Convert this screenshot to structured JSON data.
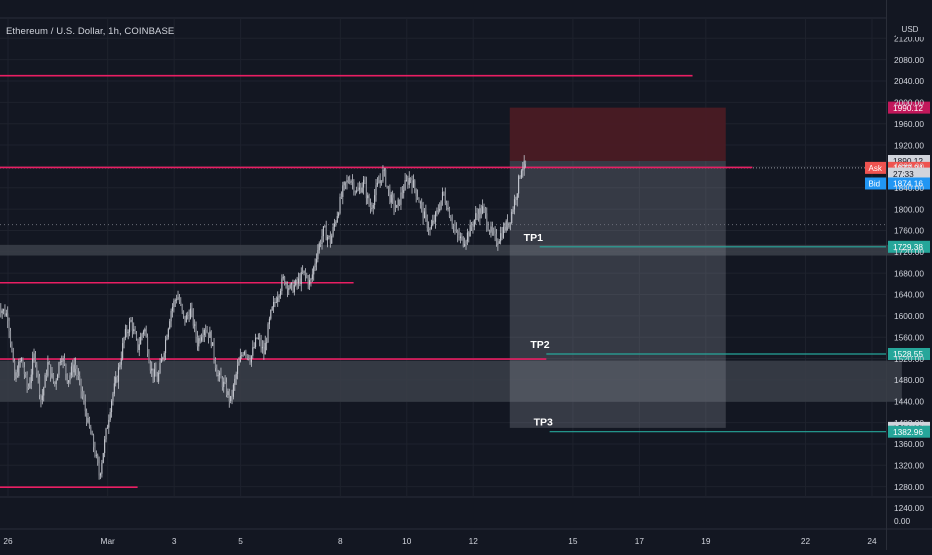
{
  "header": {
    "symbol_title": "Ethereum / U.S. Dollar, 1h, COINBASE",
    "currency": "USD"
  },
  "colors": {
    "background": "#131722",
    "grid": "#1e222d",
    "axis_text": "#d1d4dc",
    "candles": "#c4c7cf",
    "resistance": "#e91e63",
    "target": "#26a69a",
    "stop_zone": "#4a1b24",
    "profit_zone": "#2a2e39",
    "support_zone": "#3b3f49",
    "ask": "#ef5350",
    "bid": "#2196f3",
    "stop_label": "#c2185b"
  },
  "chart_data": {
    "type": "candlestick",
    "title": "Ethereum / U.S. Dollar, 1h, COINBASE",
    "ylabel": "USD",
    "ylim": [
      1220,
      2160
    ],
    "grid": true,
    "y_ticks": [
      "1240.00",
      "1280.00",
      "1320.00",
      "1360.00",
      "1400.00",
      "1440.00",
      "1480.00",
      "1520.00",
      "1560.00",
      "1600.00",
      "1640.00",
      "1680.00",
      "1720.00",
      "1760.00",
      "1800.00",
      "1840.00",
      "1880.00",
      "1920.00",
      "1960.00",
      "2000.00",
      "2040.00",
      "2080.00",
      "2120.00"
    ],
    "y_tick_values": [
      1240,
      1280,
      1320,
      1360,
      1400,
      1440,
      1480,
      1520,
      1560,
      1600,
      1640,
      1680,
      1720,
      1760,
      1800,
      1840,
      1880,
      1920,
      1960,
      2000,
      2040,
      2080,
      2120
    ],
    "x_ticks": [
      {
        "label": "26",
        "day": 0
      },
      {
        "label": "Mar",
        "day": 3
      },
      {
        "label": "3",
        "day": 5
      },
      {
        "label": "5",
        "day": 7
      },
      {
        "label": "8",
        "day": 10
      },
      {
        "label": "10",
        "day": 12
      },
      {
        "label": "12",
        "day": 14
      },
      {
        "label": "15",
        "day": 17
      },
      {
        "label": "17",
        "day": 19
      },
      {
        "label": "19",
        "day": 21
      },
      {
        "label": "22",
        "day": 24
      },
      {
        "label": "24",
        "day": 26
      }
    ],
    "price_path": [
      [
        -0.3,
        1620
      ],
      [
        0,
        1600
      ],
      [
        0.2,
        1480
      ],
      [
        0.4,
        1520
      ],
      [
        0.6,
        1460
      ],
      [
        0.8,
        1530
      ],
      [
        1.0,
        1440
      ],
      [
        1.2,
        1510
      ],
      [
        1.4,
        1470
      ],
      [
        1.6,
        1530
      ],
      [
        1.8,
        1480
      ],
      [
        2.0,
        1510
      ],
      [
        2.2,
        1460
      ],
      [
        2.4,
        1400
      ],
      [
        2.6,
        1350
      ],
      [
        2.75,
        1300
      ],
      [
        2.9,
        1360
      ],
      [
        3.1,
        1440
      ],
      [
        3.3,
        1490
      ],
      [
        3.5,
        1560
      ],
      [
        3.7,
        1590
      ],
      [
        3.9,
        1540
      ],
      [
        4.1,
        1580
      ],
      [
        4.3,
        1500
      ],
      [
        4.5,
        1480
      ],
      [
        4.7,
        1540
      ],
      [
        4.9,
        1610
      ],
      [
        5.1,
        1640
      ],
      [
        5.3,
        1590
      ],
      [
        5.5,
        1610
      ],
      [
        5.7,
        1550
      ],
      [
        5.9,
        1580
      ],
      [
        6.1,
        1560
      ],
      [
        6.3,
        1490
      ],
      [
        6.5,
        1470
      ],
      [
        6.7,
        1440
      ],
      [
        6.9,
        1500
      ],
      [
        7.1,
        1540
      ],
      [
        7.3,
        1520
      ],
      [
        7.5,
        1560
      ],
      [
        7.7,
        1530
      ],
      [
        7.9,
        1600
      ],
      [
        8.1,
        1640
      ],
      [
        8.3,
        1670
      ],
      [
        8.5,
        1650
      ],
      [
        8.7,
        1660
      ],
      [
        8.9,
        1680
      ],
      [
        9.1,
        1660
      ],
      [
        9.3,
        1720
      ],
      [
        9.5,
        1760
      ],
      [
        9.7,
        1740
      ],
      [
        9.9,
        1790
      ],
      [
        10.1,
        1840
      ],
      [
        10.3,
        1860
      ],
      [
        10.5,
        1830
      ],
      [
        10.7,
        1850
      ],
      [
        10.9,
        1800
      ],
      [
        11.1,
        1840
      ],
      [
        11.3,
        1870
      ],
      [
        11.5,
        1820
      ],
      [
        11.7,
        1800
      ],
      [
        11.9,
        1840
      ],
      [
        12.1,
        1860
      ],
      [
        12.3,
        1830
      ],
      [
        12.5,
        1790
      ],
      [
        12.7,
        1760
      ],
      [
        12.9,
        1790
      ],
      [
        13.1,
        1830
      ],
      [
        13.3,
        1790
      ],
      [
        13.5,
        1750
      ],
      [
        13.7,
        1740
      ],
      [
        13.9,
        1760
      ],
      [
        14.1,
        1790
      ],
      [
        14.3,
        1800
      ],
      [
        14.5,
        1760
      ],
      [
        14.7,
        1740
      ],
      [
        14.9,
        1760
      ],
      [
        15.1,
        1780
      ],
      [
        15.3,
        1830
      ],
      [
        15.45,
        1880
      ],
      [
        15.6,
        1880
      ]
    ],
    "annotations": {
      "current_price_dotted": 1877.24,
      "secondary_dotted": 1771,
      "resistance_lines": [
        {
          "y": 2050,
          "x0": -0.3,
          "x1": 20.6
        },
        {
          "y": 1878,
          "x0": -0.3,
          "x1": 22.4
        },
        {
          "y": 1662,
          "x0": -0.3,
          "x1": 10.4
        },
        {
          "y": 1519,
          "x0": -0.3,
          "x1": 16.2
        },
        {
          "y": 1279,
          "x0": -0.3,
          "x1": 3.9
        }
      ],
      "support_zones": [
        {
          "y_low": 1713,
          "y_high": 1733,
          "x0": -0.3,
          "x1": 26.9
        },
        {
          "y_low": 1439,
          "y_high": 1516,
          "x0": -0.3,
          "x1": 26.9
        }
      ],
      "position": {
        "x0": 15.1,
        "x1": 21.6,
        "stop": 1990.12,
        "entry": 1890.12,
        "target": 1390.12
      },
      "targets": [
        {
          "label": "TP1",
          "y": 1729.38,
          "x0": 16.0,
          "label_x": 16.0
        },
        {
          "label": "TP2",
          "y": 1528.55,
          "x0": 16.2,
          "label_x": 16.2
        },
        {
          "label": "TP3",
          "y": 1382.96,
          "x0": 16.3,
          "label_x": 16.3
        }
      ]
    },
    "price_labels": [
      {
        "text": "1990.12",
        "y": 1990.12,
        "kind": "stop"
      },
      {
        "text": "1890.12",
        "y": 1890.12,
        "kind": "entry"
      },
      {
        "text": "1877.24",
        "y": 1877.24,
        "kind": "ask",
        "tag": "Ask"
      },
      {
        "text": "27:33",
        "y": 1866.5,
        "kind": "timer"
      },
      {
        "text": "1874.16",
        "y": 1848,
        "kind": "bid",
        "tag": "Bid"
      },
      {
        "text": "1729.38",
        "y": 1729.38,
        "kind": "target"
      },
      {
        "text": "1528.55",
        "y": 1528.55,
        "kind": "target"
      },
      {
        "text": "1390.12",
        "y": 1390.12,
        "kind": "entry"
      },
      {
        "text": "1382.96",
        "y": 1382.96,
        "kind": "target"
      }
    ],
    "volume_pane": {
      "ticks": [
        "0.00"
      ]
    }
  }
}
